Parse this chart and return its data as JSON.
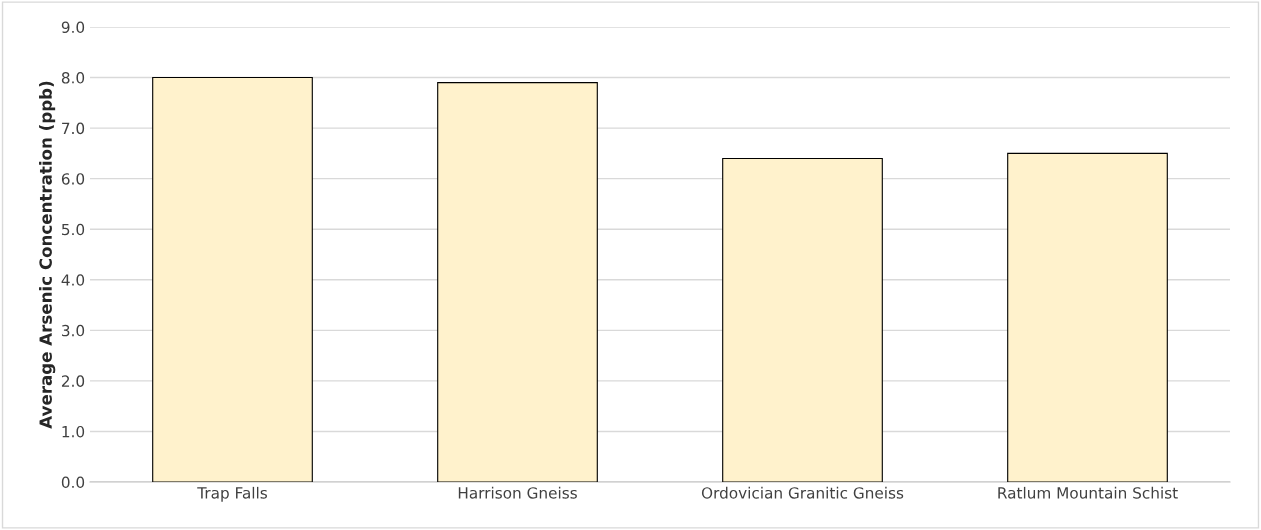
{
  "chart_data": {
    "type": "bar",
    "ylabel": "Average Arsenic Concentration (ppb)",
    "categories": [
      "Trap Falls",
      "Harrison Gneiss",
      "Ordovician Granitic Gneiss",
      "Ratlum Mountain Schist"
    ],
    "values": [
      8.0,
      7.9,
      6.4,
      6.5
    ],
    "color": "#fff2cc",
    "ylim": [
      0,
      9
    ],
    "yticks": [
      {
        "value": 0,
        "label": "0.0"
      },
      {
        "value": 1,
        "label": "1.0"
      },
      {
        "value": 2,
        "label": "2.0"
      },
      {
        "value": 3,
        "label": "3.0"
      },
      {
        "value": 4,
        "label": "4.0"
      },
      {
        "value": 5,
        "label": "5.0"
      },
      {
        "value": 6,
        "label": "6.0"
      },
      {
        "value": 7,
        "label": "7.0"
      },
      {
        "value": 8,
        "label": "8.0"
      },
      {
        "value": 9,
        "label": "9.0"
      }
    ],
    "grid": "y"
  }
}
